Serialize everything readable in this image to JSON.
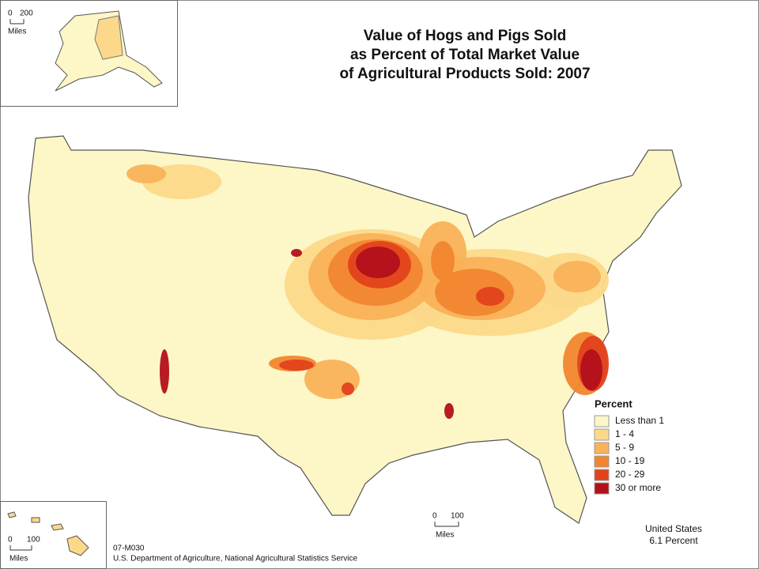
{
  "title": [
    "Value of Hogs and Pigs Sold",
    "as Percent of Total Market Value",
    "of Agricultural Products Sold:  2007"
  ],
  "legend": {
    "title": "Percent",
    "items": [
      {
        "label": "Less than 1",
        "color": "#fdf6c6"
      },
      {
        "label": "1 - 4",
        "color": "#fcd98a"
      },
      {
        "label": "5 - 9",
        "color": "#f9b25a"
      },
      {
        "label": "10 - 19",
        "color": "#f2862f"
      },
      {
        "label": "20 - 29",
        "color": "#e2421c"
      },
      {
        "label": "30 or more",
        "color": "#b3101c"
      }
    ]
  },
  "summary": [
    "United States",
    "6.1 Percent"
  ],
  "footer": [
    "07-M030",
    "U.S. Department of Agriculture, National Agricultural Statistics Service"
  ],
  "scale_bars": {
    "alaska": {
      "start": "0",
      "end": "200",
      "unit": "Miles"
    },
    "hawaii": {
      "start": "0",
      "end": "100",
      "unit": "Miles"
    },
    "main": {
      "start": "0",
      "end": "100",
      "unit": "Miles"
    }
  }
}
